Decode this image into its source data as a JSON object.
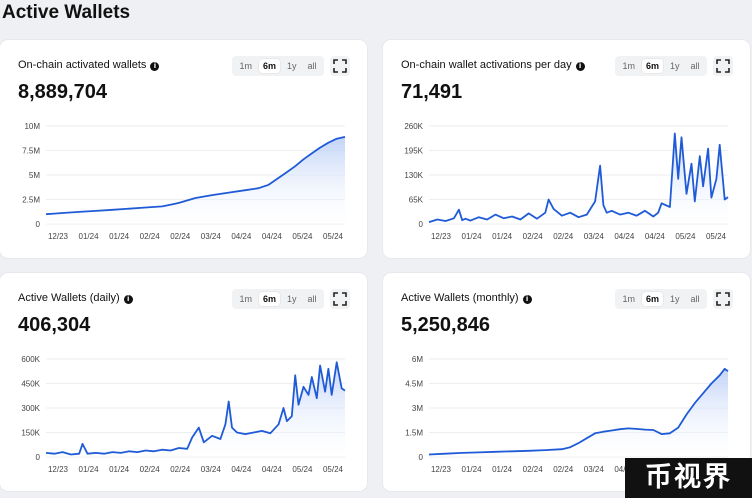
{
  "page": {
    "title": "Active Wallets"
  },
  "range_options": [
    "1m",
    "6m",
    "1y",
    "all"
  ],
  "selected_range": "6m",
  "colors": {
    "line": "#1f5bd6",
    "fill_top": "#bfd1f7",
    "fill_bottom": "#ffffff"
  },
  "cards": [
    {
      "title": "On-chain activated wallets",
      "value": "8,889,704"
    },
    {
      "title": "On-chain wallet activations per day",
      "value": "71,491"
    },
    {
      "title": "Active Wallets (daily)",
      "value": "406,304"
    },
    {
      "title": "Active Wallets (monthly)",
      "value": "5,250,846"
    }
  ],
  "watermark": "币视界",
  "chart_data": [
    {
      "type": "area",
      "x_ticks": [
        "12/23",
        "01/24",
        "01/24",
        "02/24",
        "02/24",
        "03/24",
        "04/24",
        "04/24",
        "05/24",
        "05/24"
      ],
      "y_ticks": [
        "0",
        "2.5M",
        "5M",
        "7.5M",
        "10M"
      ],
      "ylim": [
        0,
        10000000
      ],
      "x": [
        0,
        5,
        10,
        20,
        30,
        40,
        50,
        60,
        70,
        76,
        80,
        90,
        100,
        110,
        120,
        128,
        134,
        140,
        145,
        150,
        155,
        160,
        165,
        170,
        175,
        180
      ],
      "values": [
        1000000,
        1060000,
        1120000,
        1230000,
        1340000,
        1450000,
        1560000,
        1680000,
        1800000,
        2000000,
        2150000,
        2650000,
        2950000,
        3200000,
        3450000,
        3650000,
        4000000,
        4700000,
        5300000,
        5900000,
        6600000,
        7200000,
        7800000,
        8300000,
        8700000,
        8889704
      ]
    },
    {
      "type": "area",
      "x_ticks": [
        "12/23",
        "01/24",
        "01/24",
        "02/24",
        "02/24",
        "03/24",
        "04/24",
        "04/24",
        "05/24",
        "05/24"
      ],
      "y_ticks": [
        "0",
        "65K",
        "130K",
        "195K",
        "260K"
      ],
      "ylim": [
        0,
        260000
      ],
      "x": [
        0,
        5,
        10,
        15,
        18,
        20,
        22,
        25,
        30,
        35,
        40,
        45,
        50,
        55,
        60,
        65,
        70,
        72,
        75,
        80,
        85,
        90,
        95,
        100,
        103,
        105,
        107,
        110,
        115,
        120,
        125,
        130,
        135,
        138,
        140,
        145,
        148,
        150,
        152,
        155,
        158,
        160,
        163,
        165,
        168,
        170,
        173,
        175,
        178,
        180
      ],
      "values": [
        5000,
        12000,
        8000,
        15000,
        38000,
        10000,
        14000,
        9000,
        18000,
        12000,
        25000,
        15000,
        20000,
        12000,
        28000,
        14000,
        30000,
        65000,
        40000,
        22000,
        30000,
        18000,
        25000,
        60000,
        155000,
        50000,
        30000,
        35000,
        25000,
        30000,
        22000,
        35000,
        20000,
        30000,
        55000,
        45000,
        240000,
        120000,
        230000,
        80000,
        160000,
        60000,
        180000,
        100000,
        200000,
        70000,
        120000,
        210000,
        65000,
        71491
      ]
    },
    {
      "type": "area",
      "x_ticks": [
        "12/23",
        "01/24",
        "01/24",
        "02/24",
        "02/24",
        "03/24",
        "04/24",
        "04/24",
        "05/24",
        "05/24"
      ],
      "y_ticks": [
        "0",
        "150K",
        "300K",
        "450K",
        "600K"
      ],
      "ylim": [
        0,
        600000
      ],
      "x": [
        0,
        5,
        10,
        15,
        20,
        22,
        25,
        30,
        35,
        40,
        45,
        50,
        55,
        60,
        65,
        70,
        75,
        80,
        85,
        88,
        92,
        95,
        100,
        105,
        108,
        110,
        112,
        115,
        120,
        125,
        130,
        135,
        140,
        143,
        145,
        148,
        150,
        152,
        155,
        158,
        160,
        163,
        165,
        168,
        170,
        172,
        175,
        178,
        180
      ],
      "values": [
        25000,
        20000,
        30000,
        15000,
        20000,
        80000,
        20000,
        25000,
        20000,
        30000,
        25000,
        35000,
        30000,
        40000,
        35000,
        45000,
        40000,
        55000,
        50000,
        120000,
        180000,
        90000,
        130000,
        110000,
        200000,
        340000,
        180000,
        150000,
        140000,
        150000,
        160000,
        145000,
        200000,
        300000,
        220000,
        250000,
        500000,
        320000,
        430000,
        380000,
        490000,
        360000,
        560000,
        400000,
        540000,
        380000,
        580000,
        420000,
        406304
      ]
    },
    {
      "type": "area",
      "x_ticks": [
        "12/23",
        "01/24",
        "01/24",
        "02/24",
        "02/24",
        "03/24",
        "04/24",
        "04/24",
        "05/24",
        "05/24"
      ],
      "y_ticks": [
        "0",
        "1.5M",
        "3M",
        "4.5M",
        "6M"
      ],
      "ylim": [
        0,
        6000000
      ],
      "x": [
        0,
        10,
        20,
        30,
        40,
        50,
        60,
        70,
        80,
        85,
        90,
        95,
        100,
        105,
        110,
        115,
        120,
        125,
        130,
        135,
        140,
        145,
        150,
        155,
        160,
        165,
        170,
        175,
        178,
        180
      ],
      "values": [
        150000,
        200000,
        250000,
        280000,
        320000,
        350000,
        380000,
        420000,
        480000,
        600000,
        850000,
        1150000,
        1450000,
        1550000,
        1620000,
        1700000,
        1750000,
        1720000,
        1680000,
        1650000,
        1400000,
        1450000,
        1800000,
        2600000,
        3300000,
        3900000,
        4500000,
        5000000,
        5400000,
        5250846
      ]
    }
  ]
}
